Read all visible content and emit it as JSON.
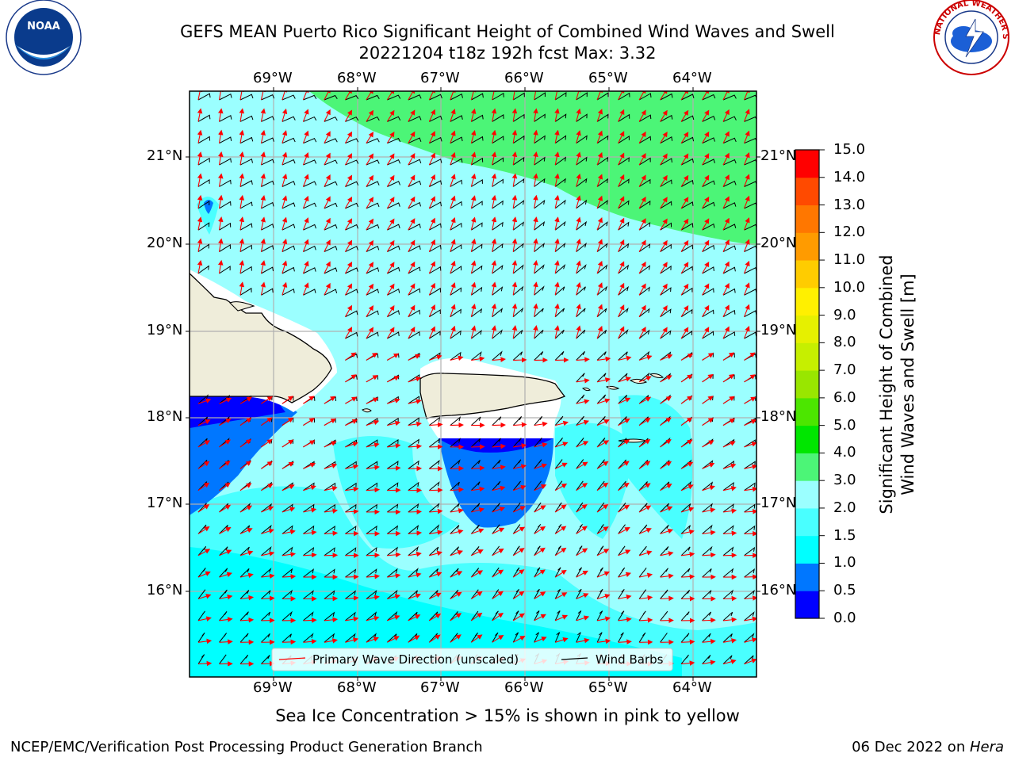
{
  "header": {
    "title_line1": "GEFS MEAN Puerto Rico Significant Height of Combined Wind Waves and Swell",
    "title_line2": "20221204 t18z 192h fcst   Max: 3.32"
  },
  "logos": {
    "left": {
      "name": "noaa-logo",
      "text": "NOAA",
      "ring_text": "NATIONAL OCEANIC AND ATMOSPHERIC ADMINISTRATION · U.S. DEPARTMENT OF COMMERCE"
    },
    "right": {
      "name": "nws-logo",
      "ring_text": "NATIONAL WEATHER SERVICE"
    }
  },
  "map": {
    "lon_labels": [
      "69°W",
      "68°W",
      "67°W",
      "66°W",
      "65°W",
      "64°W"
    ],
    "lat_labels": [
      "21°N",
      "20°N",
      "19°N",
      "18°N",
      "17°N",
      "16°N"
    ],
    "legend": {
      "primary_wave": "Primary Wave Direction (unscaled)",
      "wind_barbs": "Wind Barbs"
    },
    "colors": {
      "land": "#efedda",
      "white_gap": "#ffffff",
      "primary_arrow": "#ff0000",
      "barb": "#000000"
    }
  },
  "colorbar": {
    "label_line1": "Significant Height of Combined",
    "label_line2": "Wind Waves and Swell [m]",
    "levels": [
      "0.0",
      "0.5",
      "1.0",
      "1.5",
      "2.0",
      "3.0",
      "4.0",
      "5.0",
      "6.0",
      "7.0",
      "8.0",
      "9.0",
      "10.0",
      "11.0",
      "12.0",
      "13.0",
      "14.0",
      "15.0"
    ],
    "colors": [
      "#0000ff",
      "#0077ff",
      "#00ffff",
      "#49ffff",
      "#9bffff",
      "#4cf577",
      "#00e600",
      "#4ce600",
      "#99e600",
      "#c6ef00",
      "#e6f000",
      "#fff000",
      "#ffcc00",
      "#ff9b00",
      "#ff7700",
      "#ff4a00",
      "#ff0000"
    ]
  },
  "notes": {
    "sea_ice": "Sea Ice Concentration > 15% is shown in pink to yellow"
  },
  "footer": {
    "left": "NCEP/EMC/Verification Post Processing Product Generation Branch",
    "right_prefix": "06 Dec 2022 on ",
    "right_host": "Hera"
  }
}
